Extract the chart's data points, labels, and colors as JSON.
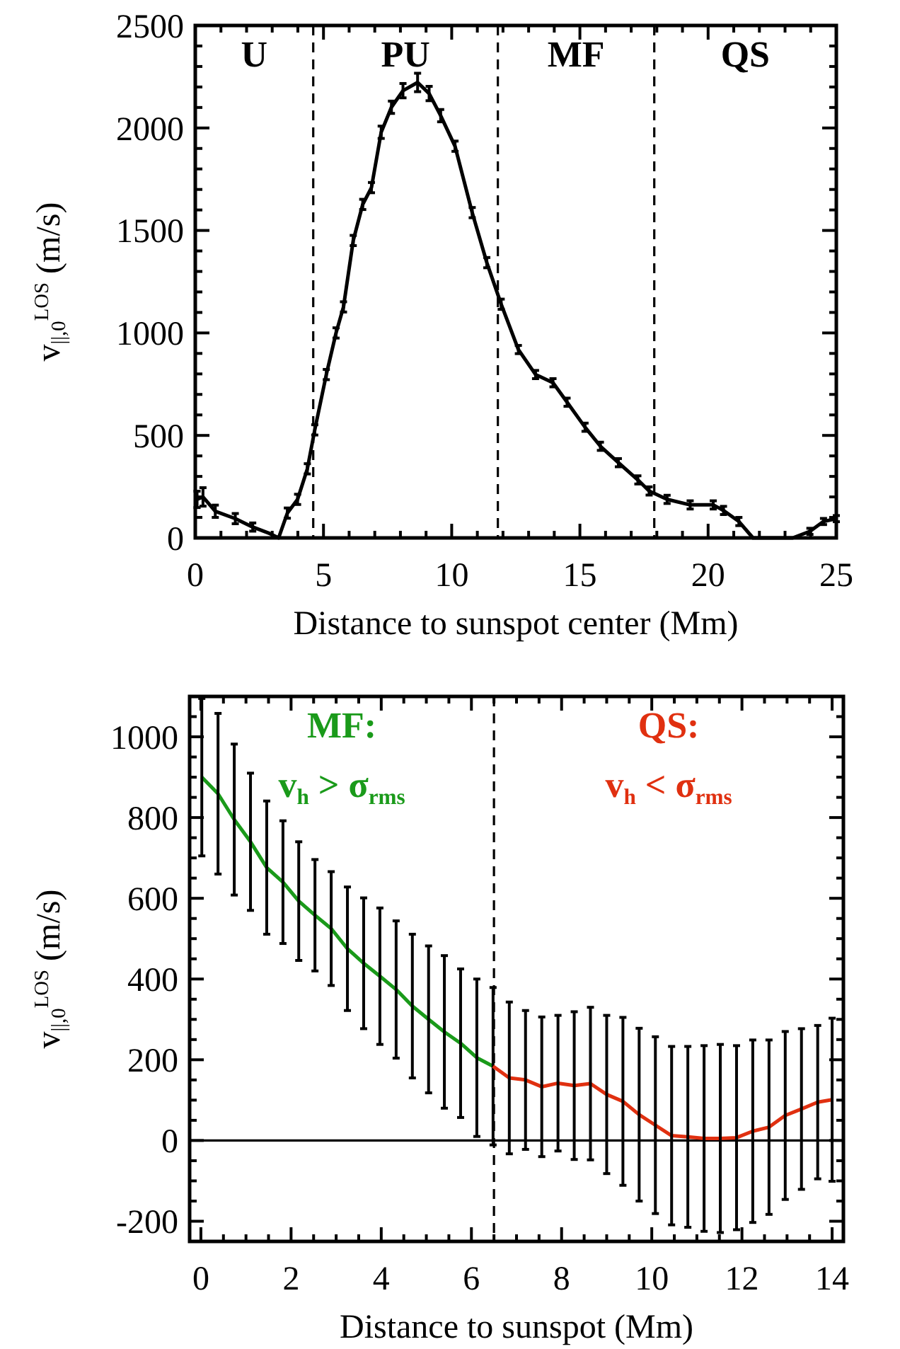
{
  "chart_data": [
    {
      "type": "line",
      "xlabel": "Distance to sunspot center  (Mm)",
      "ylabel": "v$_{||,0}$$^{LOS}$  (m/s)",
      "xlim": [
        0,
        25
      ],
      "ylim": [
        0,
        2500
      ],
      "xticks": [
        0,
        {
          "value": 1,
          "label": null
        },
        {
          "value": 2,
          "label": null
        },
        {
          "value": 3,
          "label": null
        },
        {
          "value": 4,
          "label": null
        },
        5,
        {
          "value": 6,
          "label": null
        },
        {
          "value": 7,
          "label": null
        },
        {
          "value": 8,
          "label": null
        },
        {
          "value": 9,
          "label": null
        },
        10,
        {
          "value": 11,
          "label": null
        },
        {
          "value": 12,
          "label": null
        },
        {
          "value": 13,
          "label": null
        },
        {
          "value": 14,
          "label": null
        },
        15,
        {
          "value": 16,
          "label": null
        },
        {
          "value": 17,
          "label": null
        },
        {
          "value": 18,
          "label": null
        },
        {
          "value": 19,
          "label": null
        },
        20,
        {
          "value": 21,
          "label": null
        },
        {
          "value": 22,
          "label": null
        },
        {
          "value": 23,
          "label": null
        },
        {
          "value": 24,
          "label": null
        },
        25
      ],
      "yticks": [
        0,
        {
          "value": 100,
          "label": null
        },
        {
          "value": 200,
          "label": null
        },
        {
          "value": 300,
          "label": null
        },
        {
          "value": 400,
          "label": null
        },
        500,
        {
          "value": 600,
          "label": null
        },
        {
          "value": 700,
          "label": null
        },
        {
          "value": 800,
          "label": null
        },
        {
          "value": 900,
          "label": null
        },
        1000,
        {
          "value": 1100,
          "label": null
        },
        {
          "value": 1200,
          "label": null
        },
        {
          "value": 1300,
          "label": null
        },
        {
          "value": 1400,
          "label": null
        },
        1500,
        {
          "value": 1600,
          "label": null
        },
        {
          "value": 1700,
          "label": null
        },
        {
          "value": 1800,
          "label": null
        },
        {
          "value": 1900,
          "label": null
        },
        2000,
        {
          "value": 2100,
          "label": null
        },
        {
          "value": 2200,
          "label": null
        },
        {
          "value": 2300,
          "label": null
        },
        {
          "value": 2400,
          "label": null
        },
        2500
      ],
      "series": [
        {
          "color": "#000000",
          "x": [
            0.07,
            0.3,
            0.78,
            1.56,
            2.24,
            2.91,
            3.25,
            3.59,
            3.99,
            4.37,
            4.66,
            5.11,
            5.49,
            5.78,
            6.16,
            6.53,
            6.87,
            7.25,
            7.65,
            8.1,
            8.67,
            9.12,
            9.57,
            10.13,
            10.8,
            11.37,
            11.93,
            12.6,
            13.27,
            13.95,
            14.5,
            15.2,
            15.8,
            16.5,
            17.26,
            17.7,
            18.4,
            19.3,
            20.2,
            20.6,
            21.2,
            21.75,
            22.4,
            23.3,
            23.97,
            24.5,
            25
          ],
          "values": [
            188,
            200,
            130,
            94,
            53,
            21,
            0,
            121,
            188,
            337,
            527,
            797,
            1000,
            1127,
            1451,
            1627,
            1709,
            1979,
            2101,
            2182,
            2222,
            2168,
            2060,
            1911,
            1587,
            1343,
            1140,
            919,
            797,
            757,
            662,
            540,
            447,
            367,
            283,
            229,
            188,
            161,
            161,
            134,
            80,
            0,
            0,
            0,
            32,
            80,
            94
          ],
          "errors": [
            40,
            45,
            30,
            25,
            20,
            null,
            null,
            25,
            25,
            25,
            25,
            25,
            25,
            25,
            25,
            25,
            25,
            30,
            30,
            35,
            45,
            35,
            30,
            25,
            25,
            25,
            25,
            20,
            20,
            20,
            20,
            20,
            20,
            20,
            20,
            20,
            20,
            20,
            20,
            20,
            20,
            null,
            null,
            null,
            15,
            15,
            15
          ]
        }
      ],
      "marker": "none",
      "line_style": "solid",
      "ref_lines": [
        {
          "axis": "x",
          "value": 4.6,
          "line_style": "dashed"
        },
        {
          "axis": "x",
          "value": 11.8,
          "line_style": "dashed"
        },
        {
          "axis": "x",
          "value": 17.9,
          "line_style": "dashed"
        }
      ],
      "annotations": [
        "U",
        "PU",
        "MF",
        "QS"
      ]
    },
    {
      "type": "line",
      "xlabel": "Distance to sunspot  (Mm)",
      "ylabel": "v$_{||,0}$$^{LOS}$  (m/s)",
      "xlim": [
        -0.25,
        14.25
      ],
      "ylim": [
        -250,
        1100
      ],
      "xticks": [
        0,
        {
          "value": 0.5,
          "label": null
        },
        {
          "value": 1,
          "label": null
        },
        {
          "value": 1.5,
          "label": null
        },
        2,
        {
          "value": 2.5,
          "label": null
        },
        {
          "value": 3,
          "label": null
        },
        {
          "value": 3.5,
          "label": null
        },
        4,
        {
          "value": 4.5,
          "label": null
        },
        {
          "value": 5,
          "label": null
        },
        {
          "value": 5.5,
          "label": null
        },
        6,
        {
          "value": 6.5,
          "label": null
        },
        {
          "value": 7,
          "label": null
        },
        {
          "value": 7.5,
          "label": null
        },
        8,
        {
          "value": 8.5,
          "label": null
        },
        {
          "value": 9,
          "label": null
        },
        {
          "value": 9.5,
          "label": null
        },
        10,
        {
          "value": 10.5,
          "label": null
        },
        {
          "value": 11,
          "label": null
        },
        {
          "value": 11.5,
          "label": null
        },
        12,
        {
          "value": 12.5,
          "label": null
        },
        {
          "value": 13,
          "label": null
        },
        {
          "value": 13.5,
          "label": null
        },
        14
      ],
      "yticks": [
        -200,
        {
          "value": -150,
          "label": null
        },
        {
          "value": -100,
          "label": null
        },
        {
          "value": -50,
          "label": null
        },
        0,
        {
          "value": 50,
          "label": null
        },
        {
          "value": 100,
          "label": null
        },
        {
          "value": 150,
          "label": null
        },
        200,
        {
          "value": 250,
          "label": null
        },
        {
          "value": 300,
          "label": null
        },
        {
          "value": 350,
          "label": null
        },
        400,
        {
          "value": 450,
          "label": null
        },
        {
          "value": 500,
          "label": null
        },
        {
          "value": 550,
          "label": null
        },
        600,
        {
          "value": 650,
          "label": null
        },
        {
          "value": 700,
          "label": null
        },
        {
          "value": 750,
          "label": null
        },
        800,
        {
          "value": 850,
          "label": null
        },
        {
          "value": 900,
          "label": null
        },
        {
          "value": 950,
          "label": null
        },
        1000,
        {
          "value": 1050,
          "label": null
        }
      ],
      "series": [
        {
          "color": "#1a9a1a",
          "x": [
            0.02,
            0.38,
            0.74,
            1.1,
            1.46,
            1.82,
            2.17,
            2.53,
            2.89,
            3.25,
            3.61,
            3.97,
            4.33,
            4.69,
            5.05,
            5.4,
            5.76,
            6.12,
            6.48
          ],
          "values": [
            900,
            859,
            795,
            740,
            676,
            640,
            593,
            558,
            525,
            475,
            439,
            407,
            374,
            333,
            300,
            269,
            241,
            205,
            184
          ],
          "errors": [
            195,
            199,
            187,
            170,
            165,
            152,
            147,
            138,
            141,
            153,
            162,
            169,
            170,
            178,
            182,
            189,
            184,
            195,
            195
          ]
        },
        {
          "color": "#e03010",
          "x": [
            6.48,
            6.84,
            7.2,
            7.56,
            7.92,
            8.28,
            8.64,
            9.0,
            9.36,
            9.72,
            10.08,
            10.44,
            10.8,
            11.16,
            11.52,
            11.88,
            12.24,
            12.6,
            12.96,
            13.32,
            13.68,
            14.0
          ],
          "values": [
            184,
            155,
            150,
            133,
            142,
            136,
            141,
            114,
            97,
            64,
            38,
            12,
            9,
            5,
            5,
            7,
            23,
            33,
            62,
            78,
            95,
            101
          ],
          "errors": [
            null,
            188,
            172,
            173,
            168,
            183,
            189,
            196,
            208,
            214,
            219,
            221,
            224,
            230,
            233,
            228,
            226,
            216,
            208,
            199,
            190,
            202
          ]
        }
      ],
      "marker": "none",
      "line_style": "solid",
      "ref_lines": [
        {
          "axis": "x",
          "value": 6.5,
          "line_style": "dashed"
        },
        {
          "axis": "y",
          "value": 0,
          "line_style": "solid"
        }
      ],
      "annotations": [
        "MF:",
        "v$_{h}$ > σ$_{rms}$",
        "QS:",
        "v$_{h}$ < σ$_{rms}$"
      ]
    }
  ]
}
